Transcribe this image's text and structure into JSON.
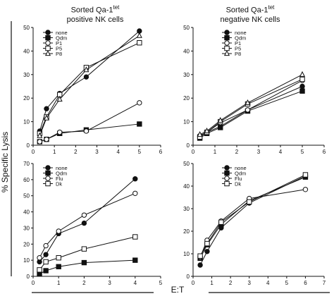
{
  "headers": {
    "left_main": "Sorted Qa-1",
    "left_sup": "tet",
    "left_sub": "positive NK cells",
    "right_main": "Sorted Qa-1",
    "right_sup": "tet",
    "right_sub": "negative NK cells"
  },
  "ylabel": "% Specific Lysis",
  "xlabel": "E:T",
  "chart_data": [
    {
      "type": "line",
      "title": "Sorted Qa-1tet positive NK cells",
      "xlabel": "",
      "ylabel": "",
      "xlim": [
        0,
        6
      ],
      "ylim": [
        0,
        50
      ],
      "xticks": [
        0,
        1,
        2,
        3,
        4,
        5,
        6
      ],
      "yticks": [
        0,
        10,
        20,
        30,
        40,
        50
      ],
      "legend_position": "top-left",
      "series": [
        {
          "name": "none",
          "marker": "circle-filled",
          "x": [
            0.31,
            0.63,
            1.25,
            2.5,
            5
          ],
          "y": [
            6,
            15.5,
            22,
            29,
            48.5
          ]
        },
        {
          "name": "Qdm",
          "marker": "square-filled",
          "x": [
            0.31,
            0.63,
            1.25,
            2.5,
            5
          ],
          "y": [
            1.5,
            2.5,
            5,
            6.5,
            9
          ]
        },
        {
          "name": "P1",
          "marker": "circle-open",
          "x": [
            0.31,
            0.63,
            1.25,
            2.5,
            5
          ],
          "y": [
            1.5,
            2.5,
            5.5,
            6,
            18
          ]
        },
        {
          "name": "P5",
          "marker": "square-open",
          "x": [
            0.31,
            0.63,
            1.25,
            2.5,
            5
          ],
          "y": [
            5,
            12,
            21.5,
            33,
            43.5
          ]
        },
        {
          "name": "P8",
          "marker": "triangle-open",
          "x": [
            0.31,
            0.63,
            1.25,
            2.5,
            5
          ],
          "y": [
            4,
            11.5,
            19.5,
            32,
            46.5
          ]
        }
      ]
    },
    {
      "type": "line",
      "title": "Sorted Qa-1tet negative NK cells",
      "xlabel": "",
      "ylabel": "",
      "xlim": [
        0,
        6
      ],
      "ylim": [
        0,
        50
      ],
      "xticks": [
        0,
        1,
        2,
        3,
        4,
        5,
        6
      ],
      "yticks": [
        0,
        10,
        20,
        30,
        40,
        50
      ],
      "legend_position": "top-right",
      "series": [
        {
          "name": "none",
          "marker": "circle-filled",
          "x": [
            0.31,
            0.63,
            1.25,
            2.5,
            5
          ],
          "y": [
            4,
            5.5,
            8,
            15,
            25
          ]
        },
        {
          "name": "Qdm",
          "marker": "square-filled",
          "x": [
            0.31,
            0.63,
            1.25,
            2.5,
            5
          ],
          "y": [
            3,
            5,
            7.5,
            14.5,
            23
          ]
        },
        {
          "name": "P1",
          "marker": "circle-open",
          "x": [
            0.31,
            0.63,
            1.25,
            2.5,
            5
          ],
          "y": [
            4,
            5.5,
            9.5,
            15,
            27.5
          ]
        },
        {
          "name": "P5",
          "marker": "square-open",
          "x": [
            0.31,
            0.63,
            1.25,
            2.5,
            5
          ],
          "y": [
            3.5,
            5.5,
            10,
            17.5,
            28
          ]
        },
        {
          "name": "P8",
          "marker": "triangle-open",
          "x": [
            0.31,
            0.63,
            1.25,
            2.5,
            5
          ],
          "y": [
            4.5,
            6,
            10.5,
            18,
            30
          ]
        }
      ]
    },
    {
      "type": "line",
      "title": "",
      "xlabel": "",
      "ylabel": "",
      "xlim": [
        0,
        5
      ],
      "ylim": [
        0,
        70
      ],
      "xticks": [
        0,
        1,
        2,
        3,
        4,
        5
      ],
      "yticks": [
        0,
        10,
        20,
        30,
        40,
        50,
        60,
        70
      ],
      "legend_position": "top-left",
      "series": [
        {
          "name": "none",
          "marker": "circle-filled",
          "x": [
            0.25,
            0.5,
            1,
            2,
            4
          ],
          "y": [
            9,
            13.5,
            26.5,
            33,
            60.5
          ]
        },
        {
          "name": "Qdm",
          "marker": "square-filled",
          "x": [
            0.25,
            0.5,
            1,
            2,
            4
          ],
          "y": [
            1.5,
            3.5,
            6,
            8.5,
            10
          ]
        },
        {
          "name": "Flu",
          "marker": "circle-open",
          "x": [
            0.25,
            0.5,
            1,
            2,
            4
          ],
          "y": [
            11.5,
            19,
            28,
            38,
            51.5
          ]
        },
        {
          "name": "Dk",
          "marker": "square-open",
          "x": [
            0.25,
            0.5,
            1,
            2,
            4
          ],
          "y": [
            4,
            9,
            11.5,
            17,
            24.5
          ]
        }
      ]
    },
    {
      "type": "line",
      "title": "",
      "xlabel": "",
      "ylabel": "",
      "xlim": [
        0,
        7
      ],
      "ylim": [
        0,
        50
      ],
      "xticks": [
        0,
        1,
        2,
        3,
        4,
        5,
        6,
        7
      ],
      "yticks": [
        0,
        10,
        20,
        30,
        40,
        50
      ],
      "legend_position": "top-left",
      "series": [
        {
          "name": "none",
          "marker": "circle-filled",
          "x": [
            0.38,
            0.75,
            1.5,
            3,
            6
          ],
          "y": [
            5,
            11,
            21.5,
            32.5,
            44.5
          ]
        },
        {
          "name": "Qdm",
          "marker": "square-filled",
          "x": [
            0.38,
            0.75,
            1.5,
            3,
            6
          ],
          "y": [
            8,
            14,
            23,
            33.5,
            44
          ]
        },
        {
          "name": "Flu",
          "marker": "circle-open",
          "x": [
            0.38,
            0.75,
            1.5,
            3,
            6
          ],
          "y": [
            8.5,
            16,
            24.5,
            34.5,
            38.5
          ]
        },
        {
          "name": "Dk",
          "marker": "square-open",
          "x": [
            0.38,
            0.75,
            1.5,
            3,
            6
          ],
          "y": [
            9,
            14.5,
            24,
            33,
            45
          ]
        }
      ]
    }
  ]
}
